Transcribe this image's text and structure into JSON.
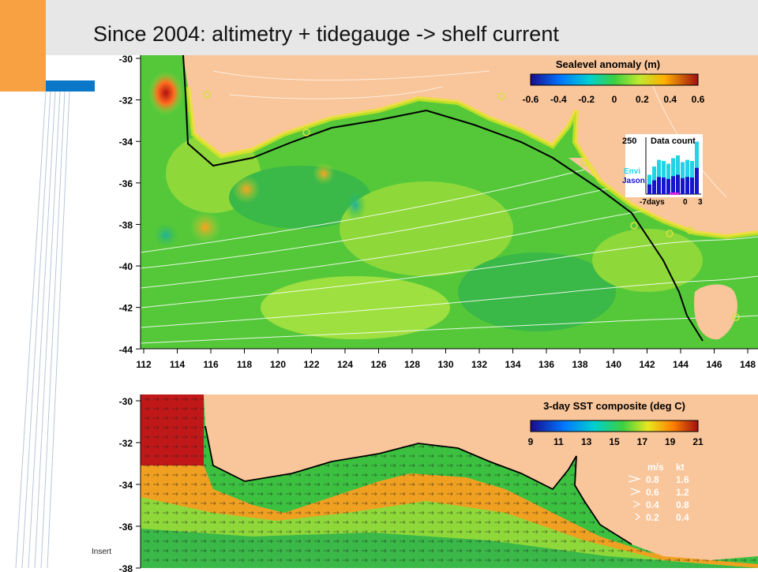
{
  "slide": {
    "title": "Since 2004: altimetry + tidegauge -> shelf current",
    "footer": "Insert"
  },
  "map_top": {
    "y_ticks": [
      "-30",
      "-32",
      "-34",
      "-36",
      "-38",
      "-40",
      "-42",
      "-44"
    ],
    "x_ticks": [
      "112",
      "114",
      "116",
      "118",
      "120",
      "122",
      "124",
      "126",
      "128",
      "130",
      "132",
      "134",
      "136",
      "138",
      "140",
      "142",
      "144",
      "146",
      "148"
    ],
    "colorbar_title": "Sealevel anomaly (m)",
    "colorbar_ticks": [
      "-0.6",
      "-0.4",
      "-0.2",
      "0",
      "0.2",
      "0.4",
      "0.6"
    ],
    "inset": {
      "title": "Data count",
      "y_label": "250",
      "legend": [
        {
          "label": "Envi",
          "color": "#22d3e8"
        },
        {
          "label": "Jason",
          "color": "#1515d0"
        }
      ],
      "x_labels": [
        "-7days",
        "0",
        "3"
      ],
      "bar_levels": [
        0.35,
        0.5,
        0.62,
        0.6,
        0.55,
        0.65,
        0.7,
        0.58,
        0.62,
        0.6,
        0.95
      ]
    }
  },
  "map_bottom": {
    "y_ticks": [
      "-30",
      "-32",
      "-34",
      "-36",
      "-38"
    ],
    "colorbar_title": "3-day SST composite (deg C)",
    "colorbar_ticks": [
      "9",
      "11",
      "13",
      "15",
      "17",
      "19",
      "21"
    ],
    "speed_legend": {
      "headers": [
        "m/s",
        "kt"
      ],
      "rows": [
        [
          "0.8",
          "1.6"
        ],
        [
          "0.6",
          "1.2"
        ],
        [
          "0.4",
          "0.8"
        ],
        [
          "0.2",
          "0.4"
        ]
      ]
    }
  },
  "colors": {
    "accent_orange": "#f7a143",
    "accent_blue": "#0b77c9",
    "land": "#f9c59a"
  }
}
